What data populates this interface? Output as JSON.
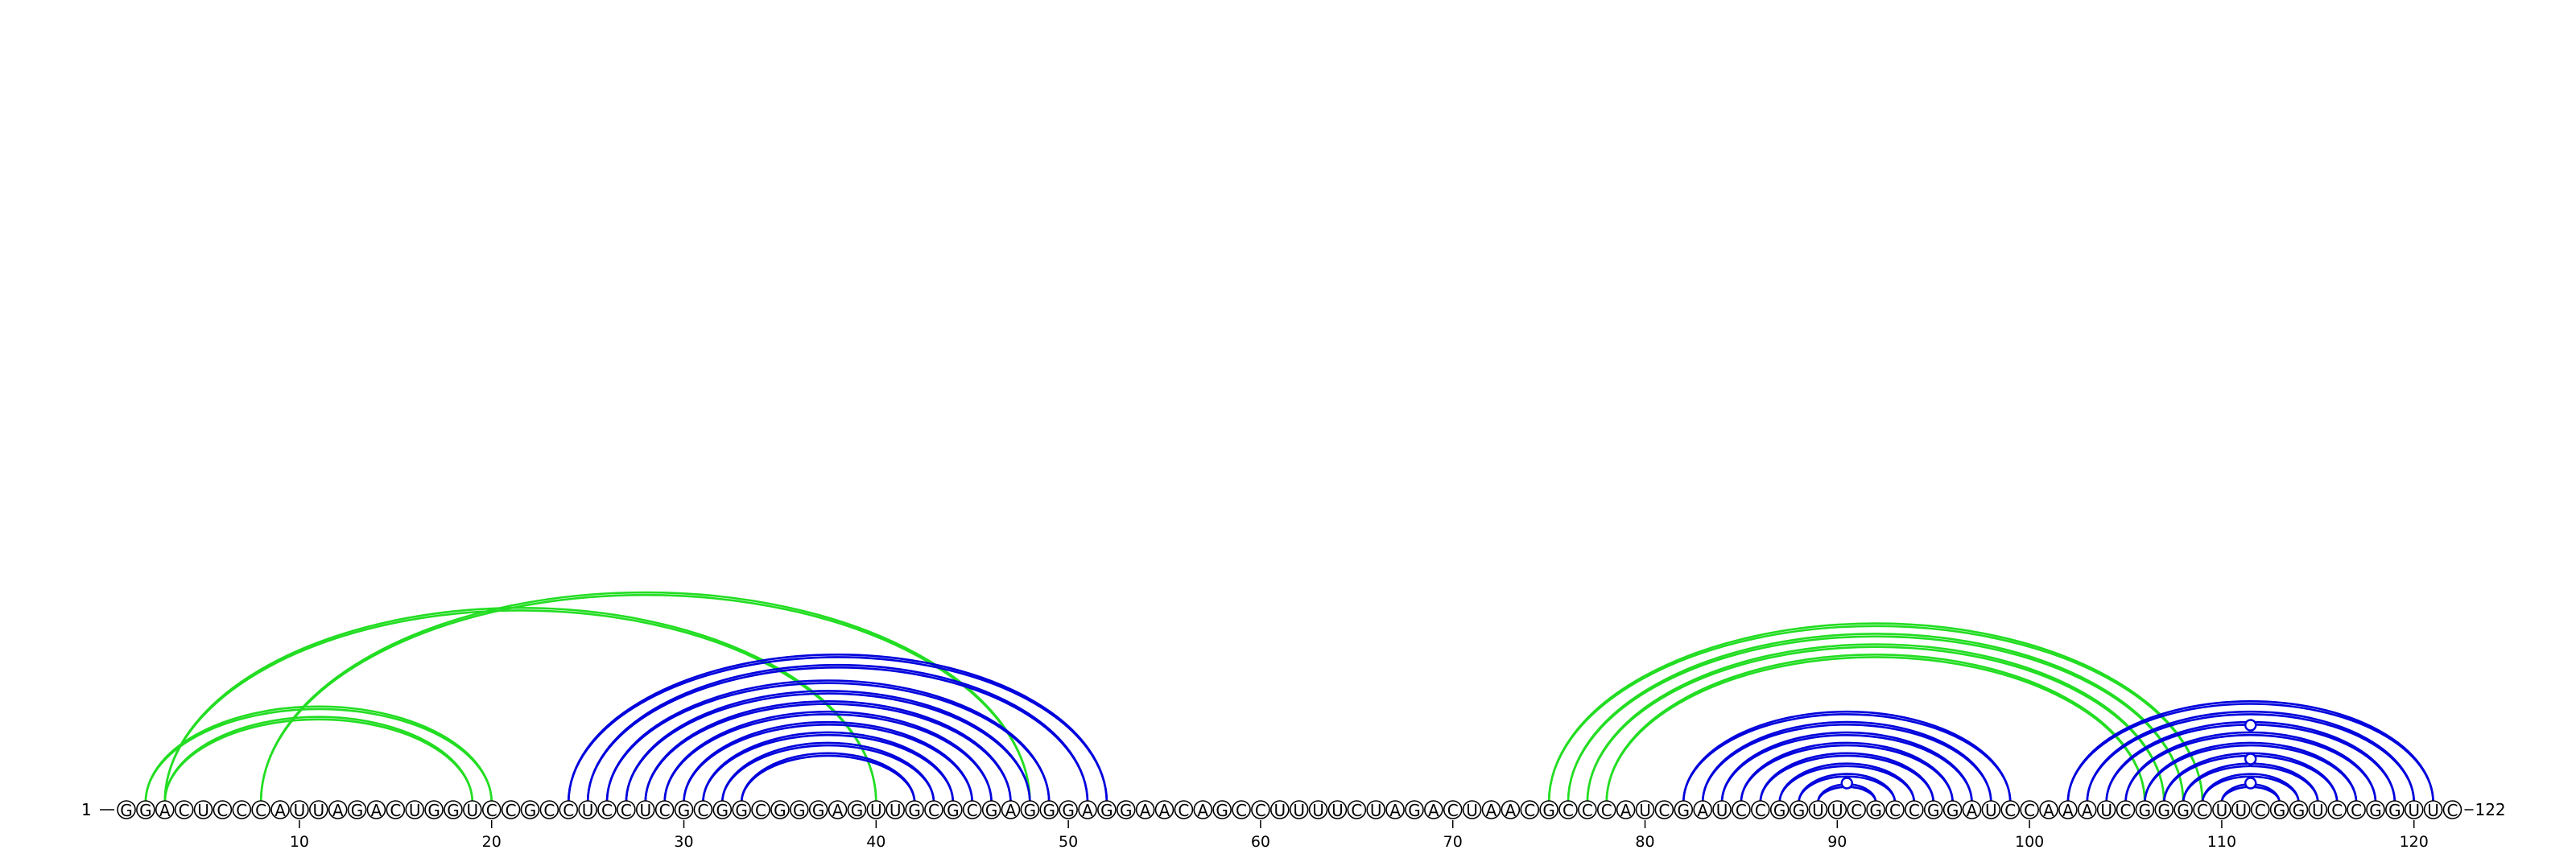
{
  "sequence": "GGACUCCCAUUAGACUGGUCCGCCUCCUCGCGGCGGGAGUUGCGCGAGGGAGGAACAGCCUUUUCUAGACUAACGCCCAUCGAUCCGGUUCGCCGGAUCCAAAUCGGGCUUCGGUCCGGUUC",
  "start_label": "1",
  "end_label": "122",
  "tick_labels": [
    "10",
    "20",
    "30",
    "40",
    "50",
    "60",
    "70",
    "80",
    "90",
    "100",
    "110",
    "120"
  ],
  "tick_positions": [
    10,
    20,
    30,
    40,
    50,
    60,
    70,
    80,
    90,
    100,
    110,
    120
  ],
  "colors": {
    "blue": "#0000dd",
    "green": "#22dd22",
    "text": "#000000",
    "background": "#ffffff"
  },
  "arcs": [
    {
      "i": 2,
      "j": 20,
      "color": "green"
    },
    {
      "i": 3,
      "j": 19,
      "color": "green"
    },
    {
      "i": 3,
      "j": 40,
      "color": "green"
    },
    {
      "i": 8,
      "j": 48,
      "color": "green"
    },
    {
      "i": 24,
      "j": 52,
      "color": "blue"
    },
    {
      "i": 25,
      "j": 51,
      "color": "blue"
    },
    {
      "i": 26,
      "j": 49,
      "color": "blue"
    },
    {
      "i": 27,
      "j": 48,
      "color": "blue"
    },
    {
      "i": 28,
      "j": 47,
      "color": "blue"
    },
    {
      "i": 29,
      "j": 46,
      "color": "blue"
    },
    {
      "i": 30,
      "j": 45,
      "color": "blue"
    },
    {
      "i": 31,
      "j": 44,
      "color": "blue"
    },
    {
      "i": 32,
      "j": 43,
      "color": "blue"
    },
    {
      "i": 33,
      "j": 42,
      "color": "blue"
    },
    {
      "i": 75,
      "j": 109,
      "color": "green"
    },
    {
      "i": 76,
      "j": 108,
      "color": "green"
    },
    {
      "i": 77,
      "j": 107,
      "color": "green"
    },
    {
      "i": 78,
      "j": 106,
      "color": "green"
    },
    {
      "i": 82,
      "j": 99,
      "color": "blue"
    },
    {
      "i": 83,
      "j": 98,
      "color": "blue"
    },
    {
      "i": 84,
      "j": 97,
      "color": "blue"
    },
    {
      "i": 85,
      "j": 96,
      "color": "blue"
    },
    {
      "i": 86,
      "j": 95,
      "color": "blue"
    },
    {
      "i": 87,
      "j": 94,
      "color": "blue"
    },
    {
      "i": 88,
      "j": 93,
      "color": "blue"
    },
    {
      "i": 89,
      "j": 92,
      "color": "blue"
    },
    {
      "i": 102,
      "j": 121,
      "color": "blue"
    },
    {
      "i": 103,
      "j": 120,
      "color": "blue"
    },
    {
      "i": 104,
      "j": 119,
      "color": "blue"
    },
    {
      "i": 105,
      "j": 118,
      "color": "blue"
    },
    {
      "i": 106,
      "j": 117,
      "color": "blue"
    },
    {
      "i": 107,
      "j": 116,
      "color": "blue"
    },
    {
      "i": 108,
      "j": 115,
      "color": "blue"
    },
    {
      "i": 109,
      "j": 114,
      "color": "blue"
    },
    {
      "i": 110,
      "j": 113,
      "color": "blue"
    }
  ],
  "unpaired_markers": [
    {
      "position": 90,
      "color": "blue"
    },
    {
      "position": 111,
      "color": "blue"
    }
  ]
}
